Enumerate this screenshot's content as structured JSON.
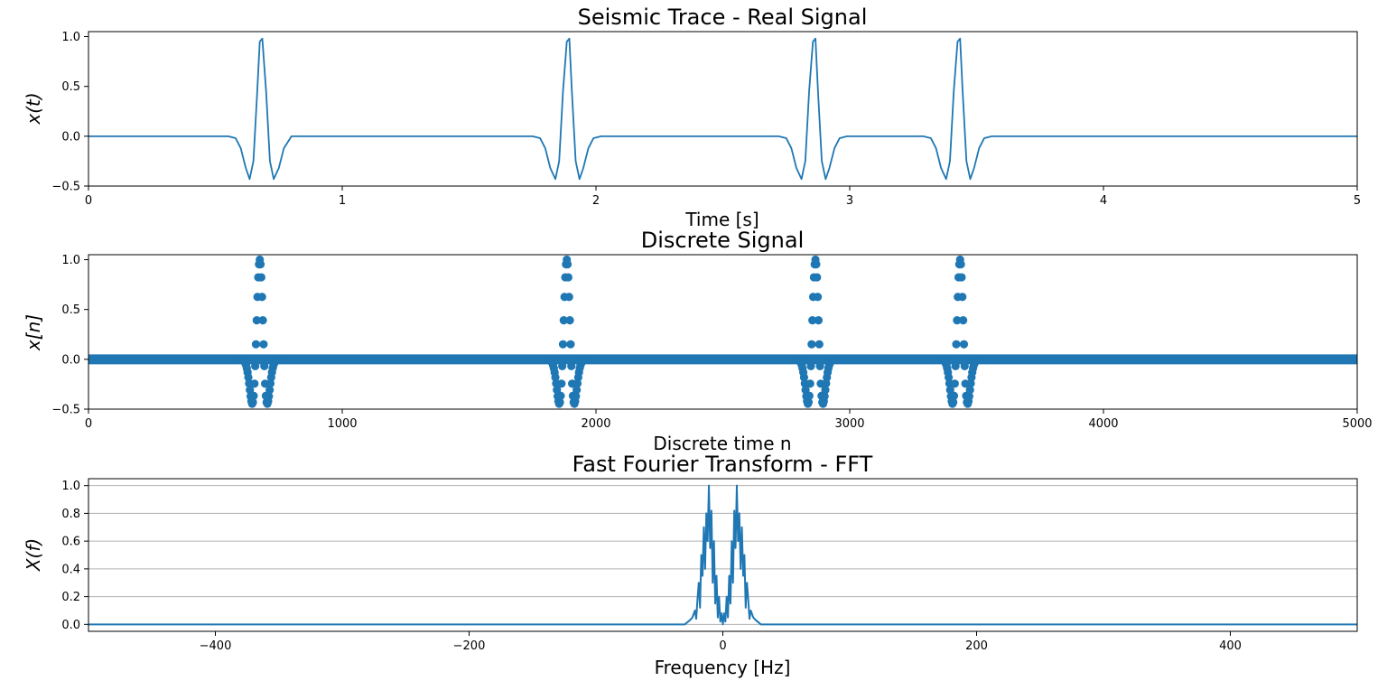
{
  "colors": {
    "series": "#1f77b4",
    "axes": "#000000",
    "grid": "#b0b0b0"
  },
  "chart_data": [
    {
      "type": "line",
      "title": "Seismic Trace - Real Signal",
      "xlabel": "Time [s]",
      "ylabel": "x(t)",
      "xlim": [
        0,
        5
      ],
      "ylim": [
        -0.5,
        1.05
      ],
      "xticks": [
        0,
        1,
        2,
        3,
        4,
        5
      ],
      "yticks": [
        -0.5,
        0.0,
        0.5,
        1.0
      ],
      "xtick_labels": [
        "0",
        "1",
        "2",
        "3",
        "4",
        "5"
      ],
      "ytick_labels": [
        "−0.5",
        "0.0",
        "0.5",
        "1.0"
      ],
      "grid": false,
      "series": [
        {
          "x": [
            0.0,
            0.55,
            0.58,
            0.6,
            0.62,
            0.635,
            0.65,
            0.665,
            0.675,
            0.685,
            0.7,
            0.715,
            0.73,
            0.75,
            0.77,
            0.8,
            1.75,
            1.78,
            1.8,
            1.82,
            1.84,
            1.855,
            1.87,
            1.885,
            1.895,
            1.905,
            1.92,
            1.935,
            1.95,
            1.97,
            1.99,
            2.02,
            2.72,
            2.75,
            2.77,
            2.79,
            2.81,
            2.825,
            2.84,
            2.855,
            2.865,
            2.875,
            2.89,
            2.905,
            2.92,
            2.94,
            2.96,
            2.99,
            3.29,
            3.32,
            3.34,
            3.36,
            3.38,
            3.395,
            3.41,
            3.425,
            3.435,
            3.445,
            3.46,
            3.475,
            3.49,
            3.51,
            3.53,
            3.56,
            5.0
          ],
          "y": [
            0.0,
            0.0,
            -0.02,
            -0.12,
            -0.32,
            -0.43,
            -0.25,
            0.45,
            0.95,
            0.98,
            0.45,
            -0.25,
            -0.43,
            -0.32,
            -0.12,
            0.0,
            0.0,
            -0.02,
            -0.12,
            -0.32,
            -0.43,
            -0.25,
            0.45,
            0.95,
            0.98,
            0.45,
            -0.25,
            -0.43,
            -0.32,
            -0.12,
            -0.02,
            0.0,
            0.0,
            -0.02,
            -0.12,
            -0.32,
            -0.43,
            -0.25,
            0.45,
            0.95,
            0.98,
            0.45,
            -0.25,
            -0.43,
            -0.32,
            -0.12,
            -0.02,
            0.0,
            0.0,
            -0.02,
            -0.12,
            -0.32,
            -0.43,
            -0.25,
            0.45,
            0.95,
            0.98,
            0.45,
            -0.25,
            -0.43,
            -0.32,
            -0.12,
            -0.02,
            0.0,
            0.0
          ]
        }
      ]
    },
    {
      "type": "scatter",
      "title": "Discrete Signal",
      "xlabel": "Discrete time n",
      "ylabel": "x[n]",
      "xlim": [
        0,
        5000
      ],
      "ylim": [
        -0.5,
        1.05
      ],
      "xticks": [
        0,
        1000,
        2000,
        3000,
        4000,
        5000
      ],
      "yticks": [
        -0.5,
        0.0,
        0.5,
        1.0
      ],
      "xtick_labels": [
        "0",
        "1000",
        "2000",
        "3000",
        "4000",
        "5000"
      ],
      "ytick_labels": [
        "−0.5",
        "0.0",
        "0.5",
        "1.0"
      ],
      "grid": false,
      "pulse_centers": [
        675,
        1885,
        2865,
        3435
      ],
      "series": [
        {
          "x": [
            600,
            620,
            630,
            640,
            650,
            660,
            670,
            680,
            690,
            700,
            710,
            720,
            730,
            1810,
            1830,
            1840,
            1850,
            1860,
            1870,
            1880,
            1890,
            1900,
            1910,
            1920,
            1930,
            1940,
            2790,
            2810,
            2820,
            2830,
            2840,
            2850,
            2860,
            2870,
            2880,
            2890,
            2900,
            2910,
            2920,
            3360,
            3380,
            3390,
            3400,
            3410,
            3420,
            3430,
            3440,
            3450,
            3460,
            3470,
            3480,
            3490
          ],
          "y": [
            -0.05,
            -0.3,
            -0.43,
            -0.4,
            -0.1,
            0.45,
            0.92,
            0.98,
            0.6,
            -0.05,
            -0.4,
            -0.43,
            -0.3,
            -0.05,
            -0.3,
            -0.43,
            -0.4,
            -0.1,
            0.45,
            0.92,
            0.98,
            0.6,
            -0.05,
            -0.4,
            -0.43,
            -0.3,
            -0.05,
            -0.3,
            -0.43,
            -0.4,
            -0.1,
            0.45,
            0.92,
            0.98,
            0.6,
            -0.05,
            -0.4,
            -0.43,
            -0.3,
            -0.05,
            -0.3,
            -0.43,
            -0.4,
            -0.1,
            0.45,
            0.92,
            0.98,
            0.6,
            -0.05,
            -0.4,
            -0.43,
            -0.3
          ]
        }
      ]
    },
    {
      "type": "line",
      "title": "Fast Fourier Transform - FFT",
      "xlabel": "Frequency [Hz]",
      "ylabel": "X(f)",
      "xlim": [
        -500,
        500
      ],
      "ylim": [
        -0.05,
        1.05
      ],
      "xticks": [
        -400,
        -200,
        0,
        200,
        400
      ],
      "yticks": [
        0.0,
        0.2,
        0.4,
        0.6,
        0.8,
        1.0
      ],
      "xtick_labels": [
        "−400",
        "−200",
        "0",
        "200",
        "400"
      ],
      "ytick_labels": [
        "0.0",
        "0.2",
        "0.4",
        "0.6",
        "0.8",
        "1.0"
      ],
      "grid": true,
      "series": [
        {
          "x": [
            -500,
            -30,
            -26,
            -24,
            -22,
            -21,
            -20,
            -19,
            -18,
            -17,
            -16,
            -15,
            -14,
            -13,
            -12,
            -11,
            -10,
            -9,
            -8,
            -7,
            -6,
            -5,
            -4,
            -3,
            -2,
            -1,
            0,
            1,
            2,
            3,
            4,
            5,
            6,
            7,
            8,
            9,
            10,
            11,
            12,
            13,
            14,
            15,
            16,
            17,
            18,
            19,
            20,
            21,
            22,
            24,
            26,
            30,
            500
          ],
          "y": [
            0.0,
            0.0,
            0.03,
            0.05,
            0.1,
            0.04,
            0.18,
            0.3,
            0.12,
            0.5,
            0.35,
            0.7,
            0.4,
            0.8,
            0.6,
            1.0,
            0.55,
            0.82,
            0.3,
            0.6,
            0.15,
            0.35,
            0.05,
            0.2,
            0.02,
            0.08,
            0.0,
            0.08,
            0.02,
            0.2,
            0.05,
            0.35,
            0.15,
            0.6,
            0.3,
            0.82,
            0.55,
            1.0,
            0.6,
            0.8,
            0.4,
            0.7,
            0.35,
            0.5,
            0.12,
            0.3,
            0.18,
            0.04,
            0.1,
            0.05,
            0.03,
            0.0,
            0.0
          ]
        }
      ]
    }
  ]
}
